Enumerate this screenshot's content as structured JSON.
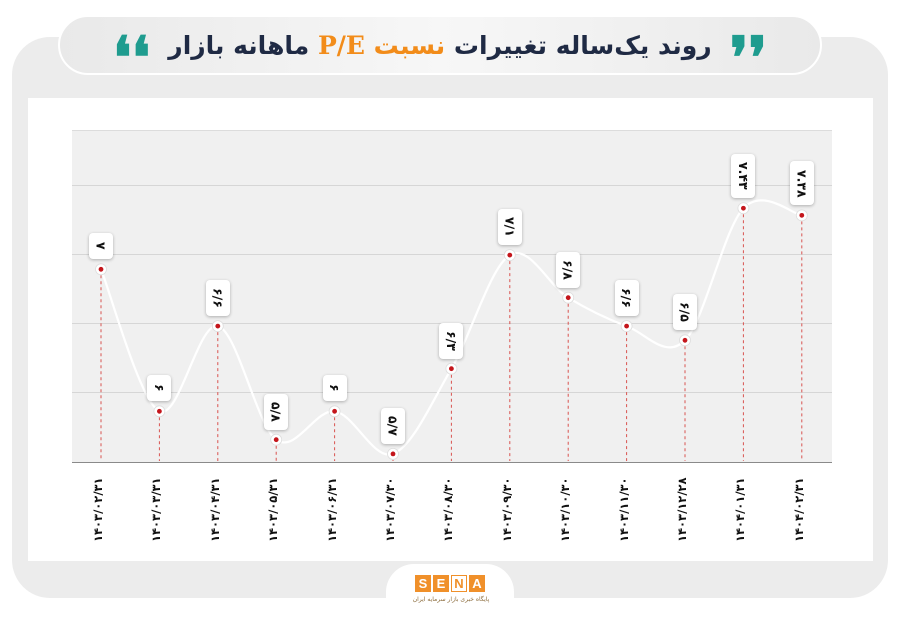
{
  "header": {
    "title_prefix": "روند یک‌ساله تغییرات ",
    "title_highlight": "نسبت ",
    "title_pe": "P/E",
    "title_suffix": " ماهانه بازار",
    "quote_open": "❛❛",
    "quote_close": "❜❜",
    "accent_color": "#1f9c8f",
    "highlight_color": "#f28c1a"
  },
  "chart_data": {
    "type": "line",
    "title": "روند یک‌ساله تغییرات نسبت P/E ماهانه بازار",
    "xlabel": "",
    "ylabel": "P/E",
    "categories": [
      "۱۴۰۳/۰۲/۳۱",
      "۱۴۰۳/۰۳/۳۱",
      "۱۴۰۳/۰۴/۳۱",
      "۱۴۰۳/۰۵/۳۱",
      "۱۴۰۳/۰۶/۳۱",
      "۱۴۰۳/۰۷/۳۰",
      "۱۴۰۳/۰۸/۳۰",
      "۱۴۰۳/۰۹/۳۰",
      "۱۴۰۳/۱۰/۳۰",
      "۱۴۰۳/۱۱/۳۰",
      "۱۴۰۳/۱۲/۲۸",
      "۱۴۰۴/۰۱/۳۱",
      "۱۴۰۴/۰۲/۳۱"
    ],
    "values": [
      7,
      6,
      6.6,
      5.8,
      6,
      5.7,
      6.3,
      7.1,
      6.8,
      6.6,
      6.5,
      7.43,
      7.38
    ],
    "value_labels": [
      "۷",
      "۶",
      "۶/۶",
      "۵/۸",
      "۶",
      "۵/۷",
      "۶/۳",
      "۷/۱",
      "۶/۸",
      "۶/۶",
      "۶/۵",
      "۷.۴۳",
      "۷.۳۸"
    ],
    "ylim": [
      5.65,
      7.98
    ],
    "grid": true,
    "legend": "none",
    "line_color": "#ffffff",
    "marker_color": "#c4161c"
  },
  "footer": {
    "logo_letters": [
      "S",
      "E",
      "N",
      "A"
    ],
    "tagline": "پایگاه خبری بازار سرمایه ایران"
  }
}
